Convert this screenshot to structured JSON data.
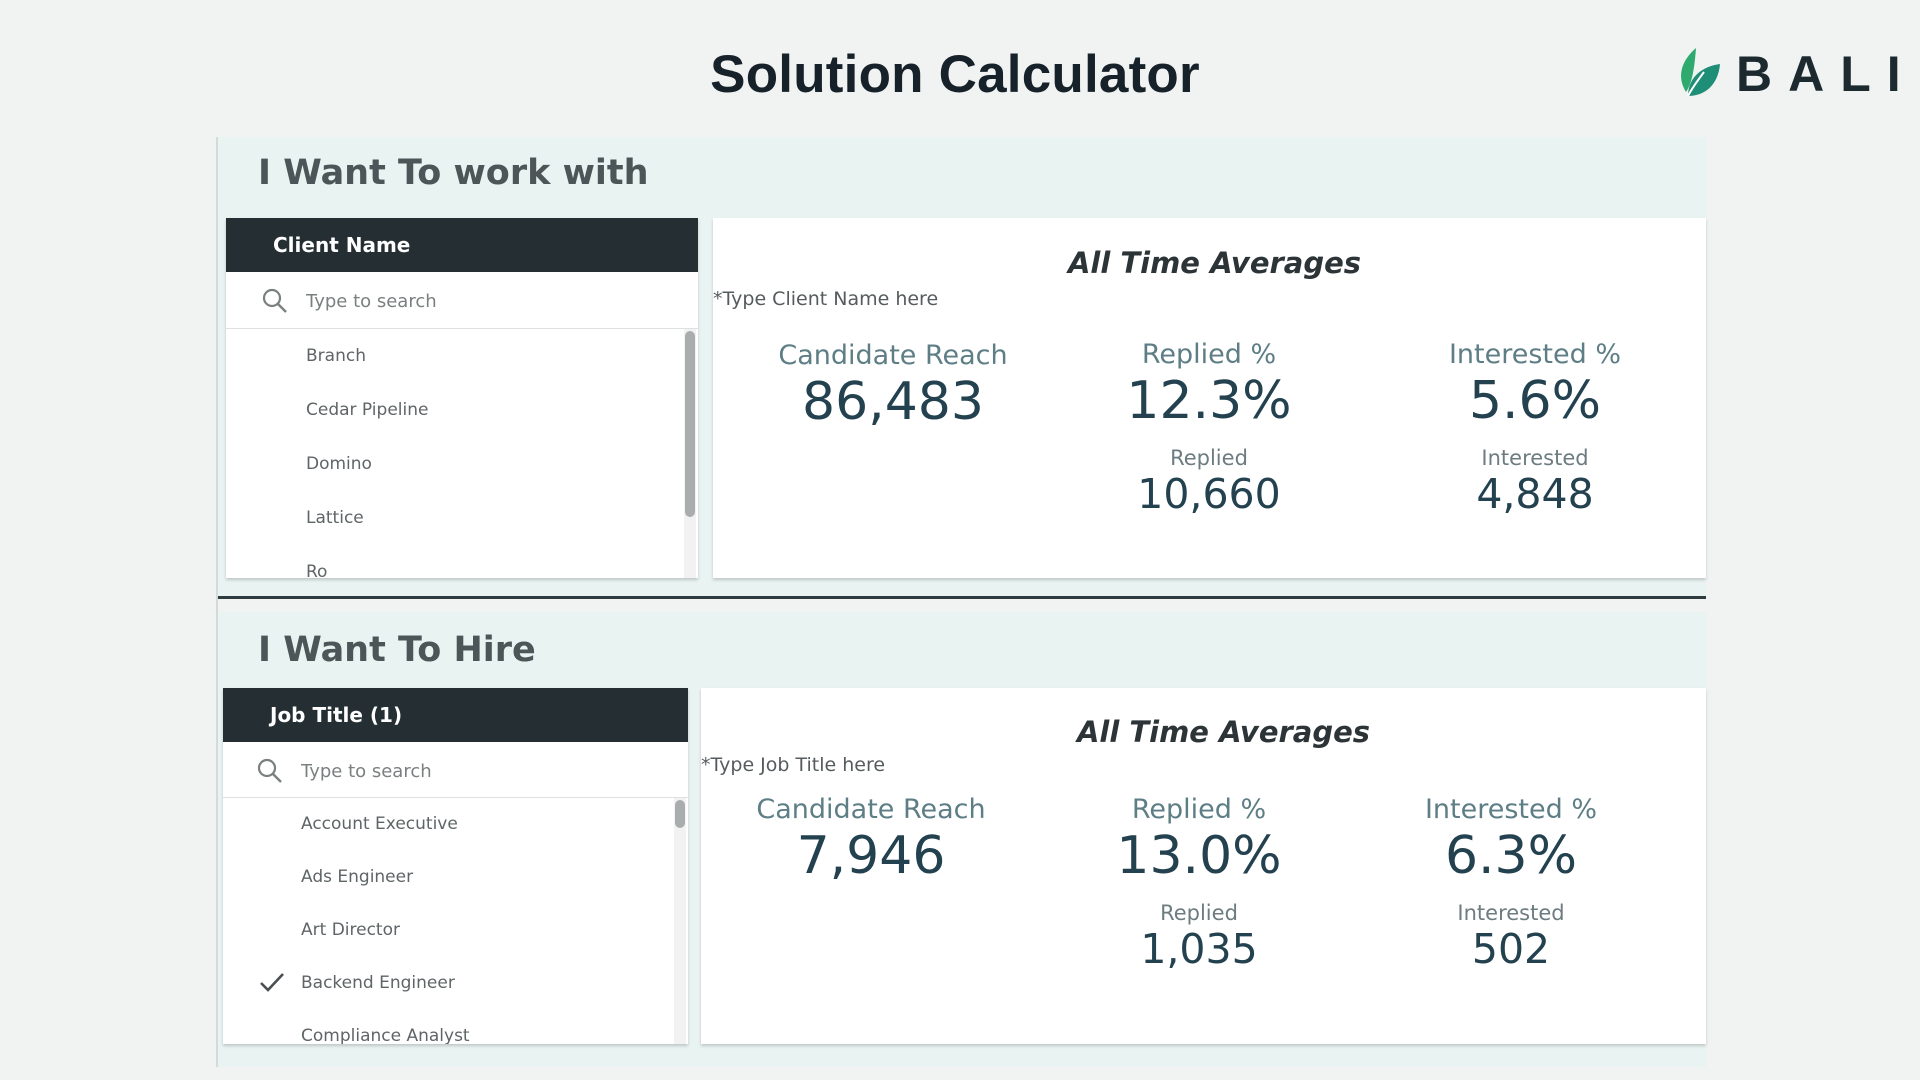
{
  "title": "Solution Calculator",
  "logo": {
    "text": "BALI",
    "accent": "#2eaa6e"
  },
  "sections": [
    {
      "title": "I Want To work with",
      "listbox": {
        "header": "Client Name",
        "search_placeholder": "Type to search",
        "items": [
          "Branch",
          "Cedar Pipeline",
          "Domino",
          "Lattice",
          "Ro"
        ],
        "checked": []
      },
      "stats": {
        "title": "All Time Averages",
        "hint": "*Type Client Name here",
        "reach_label": "Candidate Reach",
        "reach_value": "86,483",
        "replied_pct_label": "Replied %",
        "replied_pct_value": "12.3%",
        "replied_label": "Replied",
        "replied_value": "10,660",
        "interested_pct_label": "Interested %",
        "interested_pct_value": "5.6%",
        "interested_label": "Interested",
        "interested_value": "4,848"
      }
    },
    {
      "title": "I Want To Hire",
      "listbox": {
        "header": "Job Title (1)",
        "search_placeholder": "Type to search",
        "items": [
          "Account Executive",
          "Ads Engineer",
          "Art Director",
          "Backend Engineer",
          "Compliance Analyst"
        ],
        "checked": [
          "Backend Engineer"
        ]
      },
      "stats": {
        "title": "All Time Averages",
        "hint": "*Type Job Title here",
        "reach_label": "Candidate Reach",
        "reach_value": "7,946",
        "replied_pct_label": "Replied %",
        "replied_pct_value": "13.0%",
        "replied_label": "Replied",
        "replied_value": "1,035",
        "interested_pct_label": "Interested %",
        "interested_pct_value": "6.3%",
        "interested_label": "Interested",
        "interested_value": "502"
      }
    }
  ]
}
